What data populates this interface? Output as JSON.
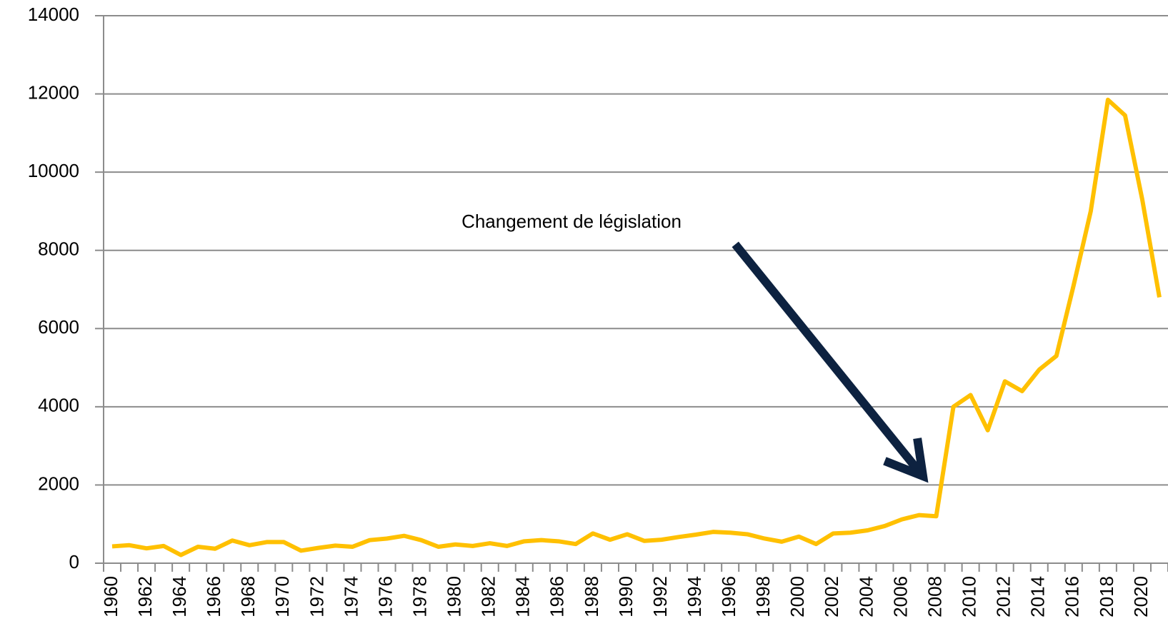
{
  "chart_data": {
    "type": "line",
    "annotations": [
      "Changement de législation"
    ],
    "categories": [
      "1960",
      null,
      "1962",
      null,
      "1964",
      null,
      "1966",
      null,
      "1968",
      null,
      "1970",
      null,
      "1972",
      null,
      "1974",
      null,
      "1976",
      null,
      "1978",
      null,
      "1980",
      null,
      "1982",
      null,
      "1984",
      null,
      "1986",
      null,
      "1988",
      null,
      "1990",
      null,
      "1992",
      null,
      "1994",
      null,
      "1996",
      null,
      "1998",
      null,
      "2000",
      null,
      "2002",
      null,
      "2004",
      null,
      "2006",
      null,
      "2008",
      null,
      "2010",
      null,
      "2012",
      null,
      "2014",
      null,
      "2016",
      null,
      "2018",
      null,
      "2020",
      null
    ],
    "series": [
      {
        "color": "#ffc000",
        "values": [
          430,
          460,
          380,
          440,
          210,
          420,
          370,
          580,
          460,
          540,
          540,
          320,
          390,
          450,
          420,
          590,
          630,
          700,
          590,
          420,
          480,
          440,
          510,
          440,
          560,
          590,
          560,
          490,
          760,
          600,
          740,
          570,
          600,
          670,
          730,
          800,
          780,
          740,
          630,
          550,
          680,
          490,
          760,
          780,
          840,
          950,
          1120,
          1230,
          1200,
          4000,
          4300,
          3400,
          4650,
          4400,
          4950,
          5300,
          7100,
          9000,
          11850,
          11450,
          9300,
          6800
        ]
      }
    ],
    "ylim": [
      0,
      14000
    ],
    "yticks": [
      0,
      2000,
      4000,
      6000,
      8000,
      10000,
      12000,
      14000
    ],
    "grid": true
  }
}
